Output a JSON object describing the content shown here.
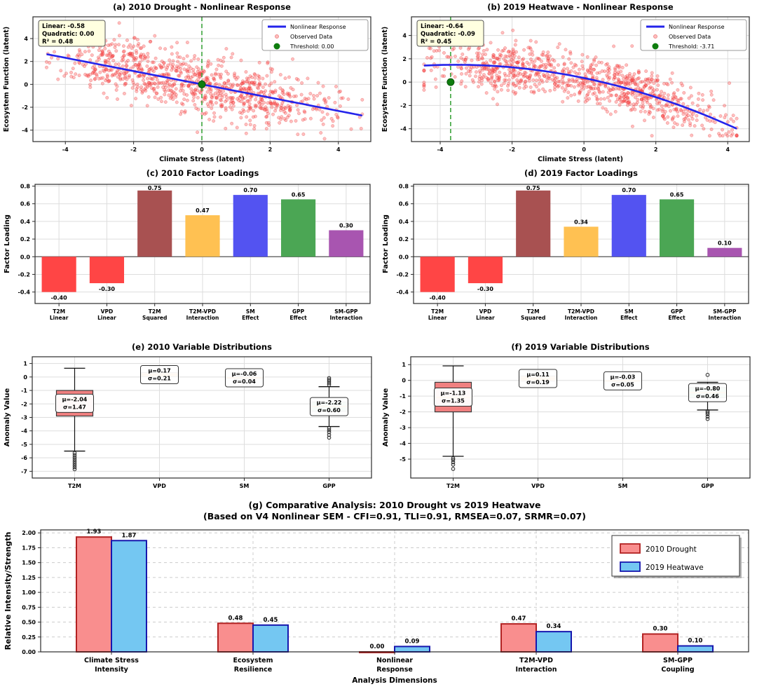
{
  "figure": {
    "background": "#FFFFFF",
    "spine_color": "#2b2b2b",
    "grid_color": "#dddddd",
    "scatter_fill": "rgba(255,72,72,0.35)",
    "scatter_edge": "rgba(214,39,39,0.45)",
    "fit_color": "#2323EB",
    "threshold_dot_color": "#0E7D0E",
    "threshold_line_color": "#3BA33B",
    "annotation_bg": "#FFFFE0",
    "median_color": "#FF8C00"
  },
  "chart_data": [
    {
      "panel": "a",
      "type": "scatter",
      "title": "(a) 2010 Drought - Nonlinear Response",
      "xlabel": "Climate Stress (latent)",
      "ylabel": "Ecosystem Function (latent)",
      "xlim": [
        -4.95,
        4.95
      ],
      "ylim": [
        -5.0,
        5.9
      ],
      "xticks": [
        -4,
        -2,
        0,
        2,
        4
      ],
      "yticks": [
        -4,
        -2,
        0,
        2,
        4
      ],
      "annotation": [
        "Linear: -0.58",
        "Quadratic: 0.00",
        "R² = 0.48"
      ],
      "legend": [
        {
          "marker": "line",
          "label": "Nonlinear Response"
        },
        {
          "marker": "dot-small",
          "label": "Observed Data"
        },
        {
          "marker": "dot",
          "label": "Threshold: 0.00"
        }
      ],
      "threshold_x": 0.0,
      "fit": {
        "intercept": 0.0,
        "linear": -0.58,
        "quadratic": 0.0,
        "x_range": [
          -4.55,
          4.7
        ]
      },
      "scatter": {
        "n": 950,
        "seed": 42,
        "clusters": [
          {
            "w": 0.35,
            "mean": -2.2,
            "sd": 1.05
          },
          {
            "w": 0.65,
            "mean": 0.9,
            "sd": 1.55
          }
        ],
        "noise_sd": 1.3,
        "x_clip": [
          -4.55,
          4.7
        ],
        "y_clip": [
          -4.75,
          5.55
        ]
      }
    },
    {
      "panel": "b",
      "type": "scatter",
      "title": "(b) 2019 Heatwave - Nonlinear Response",
      "xlabel": "Climate Stress (latent)",
      "ylabel": "Ecosystem Function (latent)",
      "xlim": [
        -4.8,
        4.6
      ],
      "ylim": [
        -5.1,
        5.6
      ],
      "xticks": [
        -4,
        -2,
        0,
        2,
        4
      ],
      "yticks": [
        -4,
        -2,
        0,
        2,
        4
      ],
      "annotation": [
        "Linear: -0.64",
        "Quadratic: -0.09",
        "R² = 0.45"
      ],
      "legend": [
        {
          "marker": "line",
          "label": "Nonlinear Response"
        },
        {
          "marker": "dot-small",
          "label": "Observed Data"
        },
        {
          "marker": "dot",
          "label": "Threshold: -3.71"
        }
      ],
      "threshold_x": -3.71,
      "fit": {
        "intercept": 0.35,
        "linear": -0.64,
        "quadratic": -0.09,
        "x_range": [
          -4.45,
          4.25
        ]
      },
      "scatter": {
        "n": 950,
        "seed": 11,
        "clusters": [
          {
            "w": 0.42,
            "mean": -2.1,
            "sd": 1.05
          },
          {
            "w": 0.58,
            "mean": 1.35,
            "sd": 1.3
          }
        ],
        "noise_sd": 1.05,
        "x_clip": [
          -4.45,
          4.25
        ],
        "y_clip": [
          -4.6,
          4.9
        ]
      }
    },
    {
      "panel": "c",
      "type": "bar",
      "title": "(c) 2010 Factor Loadings",
      "ylabel": "Factor Loading",
      "ylim": [
        -0.53,
        0.82
      ],
      "yticks": [
        -0.4,
        -0.2,
        0.0,
        0.2,
        0.4,
        0.6,
        0.8
      ],
      "ytick_labels": [
        "-0.4",
        "-0.2",
        "0.0",
        "0.2",
        "0.4",
        "0.6",
        "0.8"
      ],
      "categories": [
        [
          "T2M",
          "Linear"
        ],
        [
          "VPD",
          "Linear"
        ],
        [
          "T2M",
          "Squared"
        ],
        [
          "T2M-VPD",
          "Interaction"
        ],
        [
          "SM",
          "Effect"
        ],
        [
          "GPP",
          "Effect"
        ],
        [
          "SM-GPP",
          "Interaction"
        ]
      ],
      "values": [
        -0.4,
        -0.3,
        0.75,
        0.47,
        0.7,
        0.65,
        0.3
      ],
      "value_labels": [
        "-0.40",
        "-0.30",
        "0.75",
        "0.47",
        "0.70",
        "0.65",
        "0.30"
      ],
      "colors": [
        "#FF4545",
        "#FF4545",
        "#A85151",
        "#FFC152",
        "#5353F1",
        "#4BA654",
        "#A855B0"
      ]
    },
    {
      "panel": "d",
      "type": "bar",
      "title": "(d) 2019 Factor Loadings",
      "ylabel": "Factor Loading",
      "ylim": [
        -0.53,
        0.82
      ],
      "yticks": [
        -0.4,
        -0.2,
        0.0,
        0.2,
        0.4,
        0.6,
        0.8
      ],
      "ytick_labels": [
        "-0.4",
        "-0.2",
        "0.0",
        "0.2",
        "0.4",
        "0.6",
        "0.8"
      ],
      "categories": [
        [
          "T2M",
          "Linear"
        ],
        [
          "VPD",
          "Linear"
        ],
        [
          "T2M",
          "Squared"
        ],
        [
          "T2M-VPD",
          "Interaction"
        ],
        [
          "SM",
          "Effect"
        ],
        [
          "GPP",
          "Effect"
        ],
        [
          "SM-GPP",
          "Interaction"
        ]
      ],
      "values": [
        -0.4,
        -0.3,
        0.75,
        0.34,
        0.7,
        0.65,
        0.1
      ],
      "value_labels": [
        "-0.40",
        "-0.30",
        "0.75",
        "0.34",
        "0.70",
        "0.65",
        "0.10"
      ],
      "colors": [
        "#FF4545",
        "#FF4545",
        "#A85151",
        "#FFC152",
        "#5353F1",
        "#4BA654",
        "#A855B0"
      ]
    },
    {
      "panel": "e",
      "type": "boxplot",
      "title": "(e) 2010 Variable Distributions",
      "ylabel": "Anomaly Value",
      "ylim": [
        -7.5,
        1.5
      ],
      "yticks": [
        1,
        0,
        -1,
        -2,
        -3,
        -4,
        -5,
        -6,
        -7
      ],
      "categories": [
        "T2M",
        "VPD",
        "SM",
        "GPP"
      ],
      "boxes": [
        {
          "q1": -2.9,
          "q3": -1.0,
          "med": -1.63,
          "whisk_lo": -5.5,
          "whisk_hi": 0.65,
          "outliers": [
            -5.65,
            -5.8,
            -5.95,
            -6.1,
            -6.25,
            -6.4,
            -6.55,
            -6.7,
            -6.85
          ],
          "color": "#F08080",
          "label": [
            "μ=-2.04",
            "σ=1.47"
          ]
        },
        {
          "q1": 0.02,
          "q3": 0.33,
          "med": 0.16,
          "whisk_lo": -0.3,
          "whisk_hi": 0.8,
          "outliers": [],
          "color": "#F9AC4B",
          "label": [
            "μ=0.17",
            "σ=0.21"
          ]
        },
        {
          "q1": -0.09,
          "q3": -0.03,
          "med": -0.06,
          "whisk_lo": -0.16,
          "whisk_hi": 0.04,
          "outliers": [],
          "color": "#A8CCE0",
          "label": [
            "μ=-0.06",
            "σ=0.04"
          ]
        },
        {
          "q1": -2.55,
          "q3": -1.85,
          "med": -2.18,
          "whisk_lo": -3.68,
          "whisk_hi": -0.72,
          "outliers": [
            -0.08,
            -0.2,
            -0.32,
            -0.45,
            -0.58,
            -3.8,
            -3.95,
            -4.1,
            -4.3,
            -4.5
          ],
          "color": "#63C287",
          "label": [
            "μ=-2.22",
            "σ=0.60"
          ]
        }
      ]
    },
    {
      "panel": "f",
      "type": "boxplot",
      "title": "(f) 2019 Variable Distributions",
      "ylabel": "Anomaly Value",
      "ylim": [
        -6.2,
        1.5
      ],
      "yticks": [
        1,
        0,
        -1,
        -2,
        -3,
        -4,
        -5
      ],
      "categories": [
        "T2M",
        "VPD",
        "SM",
        "GPP"
      ],
      "boxes": [
        {
          "q1": -2.0,
          "q3": -0.12,
          "med": -1.08,
          "whisk_lo": -4.82,
          "whisk_hi": 0.92,
          "outliers": [
            -4.95,
            -5.05,
            -5.2,
            -5.35,
            -5.62
          ],
          "color": "#F08080",
          "label": [
            "μ=-1.13",
            "σ=1.35"
          ]
        },
        {
          "q1": -0.04,
          "q3": 0.28,
          "med": 0.1,
          "whisk_lo": -0.3,
          "whisk_hi": 0.6,
          "outliers": [],
          "color": "#F9AC4B",
          "label": [
            "μ=0.11",
            "σ=0.19"
          ]
        },
        {
          "q1": -0.06,
          "q3": 0.0,
          "med": -0.03,
          "whisk_lo": -0.13,
          "whisk_hi": 0.07,
          "outliers": [],
          "color": "#A8CCE0",
          "label": [
            "μ=-0.03",
            "σ=0.05"
          ]
        },
        {
          "q1": -1.1,
          "q3": -0.45,
          "med": -0.78,
          "whisk_lo": -1.88,
          "whisk_hi": -0.12,
          "outliers": [
            0.35,
            -1.95,
            -2.05,
            -2.15,
            -2.3,
            -2.45
          ],
          "color": "#63C287",
          "label": [
            "μ=-0.80",
            "σ=0.46"
          ]
        }
      ]
    },
    {
      "panel": "g",
      "type": "grouped-bar",
      "title": "(g) Comparative Analysis: 2010 Drought vs 2019 Heatwave",
      "subtitle": "(Based on V4 Nonlinear SEM - CFI=0.91, TLI=0.91, RMSEA=0.07, SRMR=0.07)",
      "xlabel": "Analysis Dimensions",
      "ylabel": "Relative Intensity/Strength",
      "ylim": [
        0,
        2.05
      ],
      "yticks": [
        0.0,
        0.25,
        0.5,
        0.75,
        1.0,
        1.25,
        1.5,
        1.75,
        2.0
      ],
      "ytick_labels": [
        "0.00",
        "0.25",
        "0.50",
        "0.75",
        "1.00",
        "1.25",
        "1.50",
        "1.75",
        "2.00"
      ],
      "categories": [
        [
          "Climate Stress",
          "Intensity"
        ],
        [
          "Ecosystem",
          "Resilience"
        ],
        [
          "Nonlinear",
          "Response"
        ],
        [
          "T2M-VPD",
          "Interaction"
        ],
        [
          "SM-GPP",
          "Coupling"
        ]
      ],
      "series": [
        {
          "name": "2010 Drought",
          "fill": "#F98E8E",
          "edge": "#B22222",
          "values": [
            1.93,
            0.48,
            0.0,
            0.47,
            0.3
          ],
          "value_labels": [
            "1.93",
            "0.48",
            "0.00",
            "0.47",
            "0.30"
          ]
        },
        {
          "name": "2019 Heatwave",
          "fill": "#74C7F2",
          "edge": "#1717AE",
          "values": [
            1.87,
            0.45,
            0.09,
            0.34,
            0.1
          ],
          "value_labels": [
            "1.87",
            "0.45",
            "0.09",
            "0.34",
            "0.10"
          ]
        }
      ],
      "legend_position": "top-right"
    }
  ]
}
